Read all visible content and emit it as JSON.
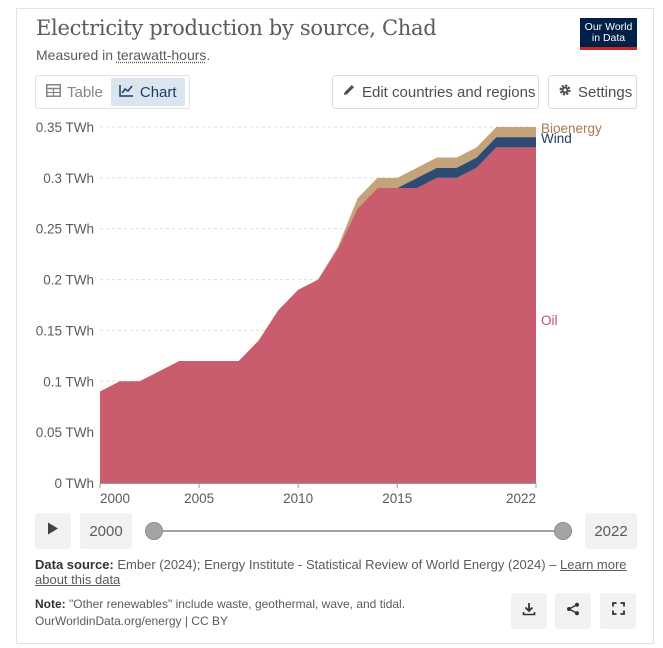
{
  "header": {
    "title": "Electricity production by source, Chad",
    "subtitle_prefix": "Measured in ",
    "subtitle_unit": "terawatt-hours",
    "subtitle_suffix": ".",
    "logo_line1": "Our World",
    "logo_line2": "in Data"
  },
  "toolbar": {
    "table_label": "Table",
    "chart_label": "Chart",
    "edit_label": "Edit countries and regions",
    "settings_label": "Settings"
  },
  "timeline": {
    "start_year": "2000",
    "end_year": "2022"
  },
  "footer": {
    "source_label": "Data source:",
    "source_text": " Ember (2024); Energy Institute - Statistical Review of World Energy (2024) – ",
    "learn_more": "Learn more about this data",
    "note_label": "Note:",
    "note_text": " \"Other renewables\" include waste, geothermal, wave, and tidal.",
    "url_text": "OurWorldinData.org/energy | CC BY"
  },
  "colors": {
    "oil": "#c95d6e",
    "wind": "#2e4b73",
    "bioenergy": "#c4a27a",
    "oil_label": "#c15065",
    "wind_label": "#1d3d63",
    "bioenergy_label": "#a9794d",
    "accent_bg": "#dbe5f0",
    "logo_bg": "#002147",
    "logo_stripe": "#ce261e"
  },
  "chart_data": {
    "type": "area",
    "stacked": true,
    "title": "Electricity production by source, Chad",
    "subtitle": "Measured in terawatt-hours.",
    "x": [
      2000,
      2001,
      2002,
      2003,
      2004,
      2005,
      2006,
      2007,
      2008,
      2009,
      2010,
      2011,
      2012,
      2013,
      2014,
      2015,
      2016,
      2017,
      2018,
      2019,
      2020,
      2021,
      2022
    ],
    "series": [
      {
        "name": "Oil",
        "color": "#c95d6e",
        "values": [
          0.09,
          0.1,
          0.1,
          0.11,
          0.12,
          0.12,
          0.12,
          0.12,
          0.14,
          0.17,
          0.19,
          0.2,
          0.23,
          0.27,
          0.29,
          0.29,
          0.29,
          0.3,
          0.3,
          0.31,
          0.33,
          0.33,
          0.33
        ]
      },
      {
        "name": "Wind",
        "color": "#2e4b73",
        "values": [
          0,
          0,
          0,
          0,
          0,
          0,
          0,
          0,
          0,
          0,
          0,
          0,
          0,
          0,
          0,
          0,
          0.01,
          0.01,
          0.01,
          0.01,
          0.01,
          0.01,
          0.01
        ]
      },
      {
        "name": "Bioenergy",
        "color": "#c4a27a",
        "values": [
          0,
          0,
          0,
          0,
          0,
          0,
          0,
          0,
          0,
          0,
          0,
          0,
          0.002,
          0.01,
          0.01,
          0.01,
          0.01,
          0.01,
          0.01,
          0.01,
          0.01,
          0.01,
          0.01
        ]
      }
    ],
    "ylim": [
      0,
      0.35
    ],
    "yticks": [
      0,
      0.05,
      0.1,
      0.15,
      0.2,
      0.25,
      0.3,
      0.35
    ],
    "ytick_labels": [
      "0 TWh",
      "0.05 TWh",
      "0.1 TWh",
      "0.15 TWh",
      "0.2 TWh",
      "0.25 TWh",
      "0.3 TWh",
      "0.35 TWh"
    ],
    "xticks": [
      2000,
      2005,
      2010,
      2015,
      2022
    ],
    "xtick_labels": [
      "2000",
      "2005",
      "2010",
      "2015",
      "2022"
    ],
    "xlim": [
      2000,
      2022
    ],
    "grid": "horizontal-dashed",
    "legend": "inline-right"
  }
}
